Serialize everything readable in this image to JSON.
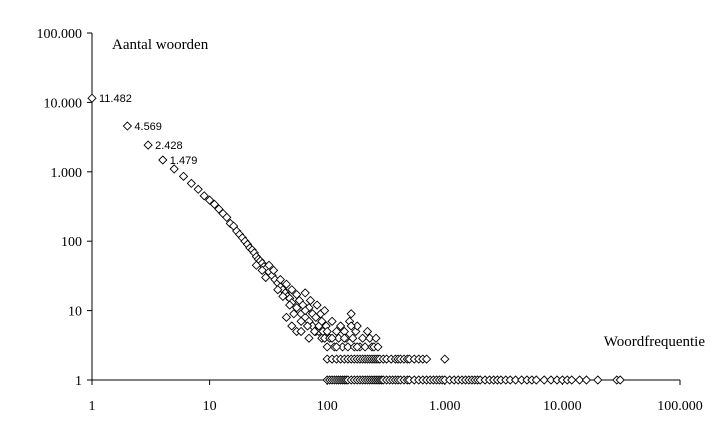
{
  "chart_data": {
    "type": "scatter",
    "title": "",
    "xlabel": "Woordfrequentie",
    "ylabel": "Aantal woorden",
    "x_scale": "log",
    "y_scale": "log",
    "xlim": [
      1,
      100000
    ],
    "ylim": [
      1,
      100000
    ],
    "x_ticks": [
      {
        "value": 1,
        "label": "1"
      },
      {
        "value": 10,
        "label": "10"
      },
      {
        "value": 100,
        "label": "100"
      },
      {
        "value": 1000,
        "label": "1.000"
      },
      {
        "value": 10000,
        "label": "10.000"
      },
      {
        "value": 100000,
        "label": "100.000"
      }
    ],
    "y_ticks": [
      {
        "value": 1,
        "label": "1"
      },
      {
        "value": 10,
        "label": "10"
      },
      {
        "value": 100,
        "label": "100"
      },
      {
        "value": 1000,
        "label": "1.000"
      },
      {
        "value": 10000,
        "label": "10.000"
      },
      {
        "value": 100000,
        "label": "100.000"
      }
    ],
    "grid": false,
    "legend": "none",
    "marker": "diamond-open",
    "annotations": [
      {
        "x": 1,
        "y": 11482,
        "text": "11.482"
      },
      {
        "x": 2,
        "y": 4569,
        "text": "4.569"
      },
      {
        "x": 3,
        "y": 2428,
        "text": "2.428"
      },
      {
        "x": 4,
        "y": 1479,
        "text": "1.479"
      }
    ],
    "points": [
      [
        1,
        11482
      ],
      [
        2,
        4569
      ],
      [
        3,
        2428
      ],
      [
        4,
        1479
      ],
      [
        5,
        1100
      ],
      [
        6,
        860
      ],
      [
        7,
        680
      ],
      [
        8,
        560
      ],
      [
        9,
        450
      ],
      [
        10,
        390
      ],
      [
        11,
        340
      ],
      [
        12,
        290
      ],
      [
        13,
        250
      ],
      [
        14,
        220
      ],
      [
        15,
        180
      ],
      [
        16,
        165
      ],
      [
        17,
        140
      ],
      [
        18,
        125
      ],
      [
        19,
        112
      ],
      [
        20,
        100
      ],
      [
        21,
        90
      ],
      [
        22,
        80
      ],
      [
        23,
        75
      ],
      [
        24,
        68
      ],
      [
        25,
        60
      ],
      [
        26,
        55
      ],
      [
        27,
        52
      ],
      [
        28,
        48
      ],
      [
        29,
        43
      ],
      [
        30,
        40
      ],
      [
        32,
        36
      ],
      [
        34,
        32
      ],
      [
        36,
        28
      ],
      [
        38,
        25
      ],
      [
        40,
        22
      ],
      [
        42,
        20
      ],
      [
        44,
        18
      ],
      [
        46,
        16
      ],
      [
        48,
        15
      ],
      [
        50,
        13
      ],
      [
        55,
        11
      ],
      [
        60,
        9
      ],
      [
        65,
        8
      ],
      [
        70,
        7
      ],
      [
        75,
        6
      ],
      [
        80,
        5
      ],
      [
        85,
        5
      ],
      [
        90,
        4
      ],
      [
        95,
        4
      ],
      [
        30,
        30
      ],
      [
        32,
        45
      ],
      [
        35,
        38
      ],
      [
        38,
        20
      ],
      [
        40,
        28
      ],
      [
        42,
        16
      ],
      [
        45,
        24
      ],
      [
        48,
        12
      ],
      [
        50,
        20
      ],
      [
        52,
        9
      ],
      [
        55,
        17
      ],
      [
        58,
        14
      ],
      [
        60,
        7
      ],
      [
        62,
        12
      ],
      [
        65,
        18
      ],
      [
        68,
        6
      ],
      [
        70,
        11
      ],
      [
        72,
        14
      ],
      [
        75,
        9
      ],
      [
        78,
        5
      ],
      [
        80,
        8
      ],
      [
        82,
        12
      ],
      [
        85,
        6
      ],
      [
        88,
        9
      ],
      [
        90,
        7
      ],
      [
        92,
        5
      ],
      [
        95,
        10
      ],
      [
        98,
        6
      ],
      [
        25,
        45
      ],
      [
        28,
        38
      ],
      [
        45,
        8
      ],
      [
        50,
        6
      ],
      [
        55,
        5
      ],
      [
        60,
        5
      ],
      [
        65,
        10
      ],
      [
        70,
        4
      ],
      [
        100,
        5
      ],
      [
        105,
        4
      ],
      [
        110,
        7
      ],
      [
        115,
        3
      ],
      [
        120,
        5
      ],
      [
        125,
        4
      ],
      [
        130,
        6
      ],
      [
        135,
        3
      ],
      [
        140,
        5
      ],
      [
        145,
        4
      ],
      [
        150,
        3
      ],
      [
        155,
        7
      ],
      [
        160,
        9
      ],
      [
        165,
        4
      ],
      [
        170,
        3
      ],
      [
        175,
        5
      ],
      [
        180,
        6
      ],
      [
        190,
        3
      ],
      [
        200,
        4
      ],
      [
        210,
        3
      ],
      [
        220,
        5
      ],
      [
        230,
        4
      ],
      [
        240,
        3
      ],
      [
        250,
        3
      ],
      [
        260,
        4
      ],
      [
        270,
        3
      ],
      [
        100,
        3
      ],
      [
        110,
        4
      ],
      [
        120,
        3
      ],
      [
        140,
        4
      ],
      [
        160,
        6
      ],
      [
        180,
        3
      ],
      [
        100,
        2
      ],
      [
        110,
        2
      ],
      [
        120,
        2
      ],
      [
        130,
        2
      ],
      [
        140,
        2
      ],
      [
        150,
        2
      ],
      [
        160,
        2
      ],
      [
        170,
        2
      ],
      [
        180,
        2
      ],
      [
        190,
        2
      ],
      [
        200,
        2
      ],
      [
        210,
        2
      ],
      [
        220,
        2
      ],
      [
        230,
        2
      ],
      [
        240,
        2
      ],
      [
        250,
        2
      ],
      [
        260,
        2
      ],
      [
        270,
        2
      ],
      [
        280,
        2
      ],
      [
        300,
        2
      ],
      [
        320,
        2
      ],
      [
        350,
        2
      ],
      [
        380,
        2
      ],
      [
        400,
        2
      ],
      [
        420,
        2
      ],
      [
        450,
        2
      ],
      [
        480,
        2
      ],
      [
        500,
        2
      ],
      [
        550,
        2
      ],
      [
        600,
        2
      ],
      [
        650,
        2
      ],
      [
        700,
        2
      ],
      [
        1000,
        2
      ],
      [
        100,
        1
      ],
      [
        105,
        1
      ],
      [
        110,
        1
      ],
      [
        115,
        1
      ],
      [
        120,
        1
      ],
      [
        125,
        1
      ],
      [
        130,
        1
      ],
      [
        135,
        1
      ],
      [
        140,
        1
      ],
      [
        145,
        1
      ],
      [
        150,
        1
      ],
      [
        160,
        1
      ],
      [
        170,
        1
      ],
      [
        180,
        1
      ],
      [
        190,
        1
      ],
      [
        200,
        1
      ],
      [
        210,
        1
      ],
      [
        220,
        1
      ],
      [
        230,
        1
      ],
      [
        240,
        1
      ],
      [
        250,
        1
      ],
      [
        260,
        1
      ],
      [
        270,
        1
      ],
      [
        280,
        1
      ],
      [
        290,
        1
      ],
      [
        300,
        1
      ],
      [
        320,
        1
      ],
      [
        340,
        1
      ],
      [
        360,
        1
      ],
      [
        380,
        1
      ],
      [
        400,
        1
      ],
      [
        420,
        1
      ],
      [
        450,
        1
      ],
      [
        480,
        1
      ],
      [
        500,
        1
      ],
      [
        550,
        1
      ],
      [
        600,
        1
      ],
      [
        650,
        1
      ],
      [
        700,
        1
      ],
      [
        750,
        1
      ],
      [
        800,
        1
      ],
      [
        850,
        1
      ],
      [
        900,
        1
      ],
      [
        950,
        1
      ],
      [
        1000,
        1
      ],
      [
        1100,
        1
      ],
      [
        1200,
        1
      ],
      [
        1300,
        1
      ],
      [
        1400,
        1
      ],
      [
        1500,
        1
      ],
      [
        1600,
        1
      ],
      [
        1700,
        1
      ],
      [
        1800,
        1
      ],
      [
        1900,
        1
      ],
      [
        2000,
        1
      ],
      [
        2200,
        1
      ],
      [
        2400,
        1
      ],
      [
        2600,
        1
      ],
      [
        2800,
        1
      ],
      [
        3000,
        1
      ],
      [
        3300,
        1
      ],
      [
        3600,
        1
      ],
      [
        4000,
        1
      ],
      [
        4500,
        1
      ],
      [
        5000,
        1
      ],
      [
        5500,
        1
      ],
      [
        6000,
        1
      ],
      [
        7000,
        1
      ],
      [
        8000,
        1
      ],
      [
        9000,
        1
      ],
      [
        10000,
        1
      ],
      [
        11000,
        1
      ],
      [
        12000,
        1
      ],
      [
        14000,
        1
      ],
      [
        16000,
        1
      ],
      [
        20000,
        1
      ],
      [
        29000,
        1
      ],
      [
        31000,
        1
      ]
    ]
  }
}
